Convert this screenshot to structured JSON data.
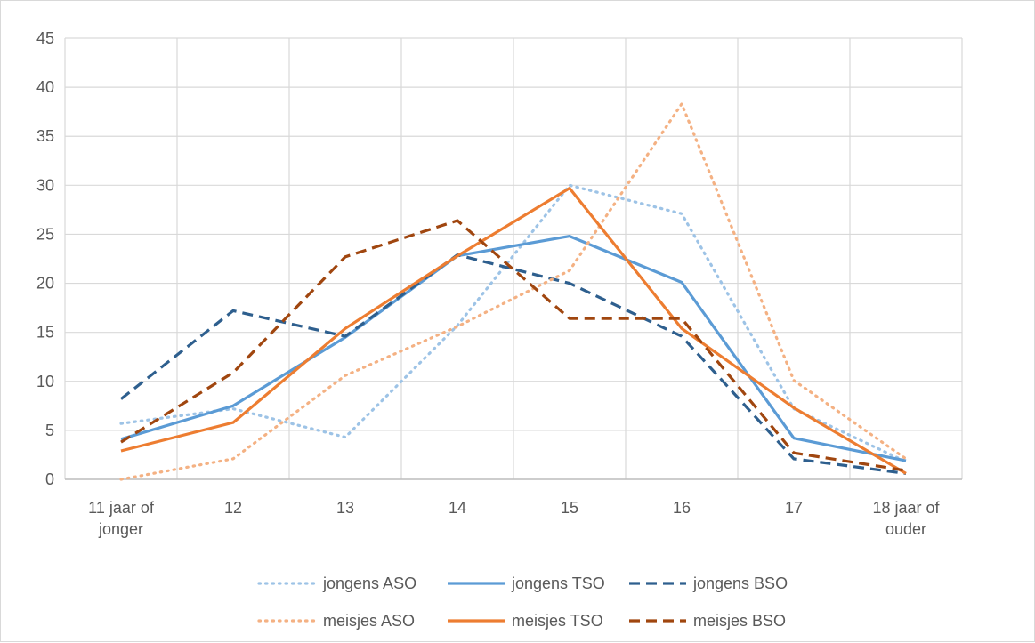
{
  "chart_data": {
    "type": "line",
    "title": "",
    "xlabel": "",
    "ylabel": "",
    "ylim": [
      0,
      45
    ],
    "y_ticks": [
      0,
      5,
      10,
      15,
      20,
      25,
      30,
      35,
      40,
      45
    ],
    "grid": true,
    "legend_position": "bottom",
    "categories": [
      [
        "11 jaar of",
        "jonger"
      ],
      [
        "12"
      ],
      [
        "13"
      ],
      [
        "14"
      ],
      [
        "15"
      ],
      [
        "16"
      ],
      [
        "17"
      ],
      [
        "18 jaar of",
        "ouder"
      ]
    ],
    "series": [
      {
        "name": "jongens ASO",
        "color": "#9dc3e6",
        "dash": "dotted",
        "values": [
          5.7,
          7.2,
          4.3,
          15.7,
          30.0,
          27.1,
          7.2,
          1.8
        ]
      },
      {
        "name": "jongens TSO",
        "color": "#5b9bd5",
        "dash": "solid",
        "values": [
          4.1,
          7.5,
          14.5,
          22.8,
          24.8,
          20.1,
          4.2,
          1.9
        ]
      },
      {
        "name": "jongens BSO",
        "color": "#2e5f8e",
        "dash": "dashed",
        "values": [
          8.2,
          17.2,
          14.6,
          22.9,
          20.0,
          14.6,
          2.1,
          0.6
        ]
      },
      {
        "name": "meisjes ASO",
        "color": "#f4b183",
        "dash": "dotted",
        "values": [
          0.0,
          2.1,
          10.6,
          15.6,
          21.3,
          38.3,
          10.1,
          2.1
        ]
      },
      {
        "name": "meisjes TSO",
        "color": "#ed7d31",
        "dash": "solid",
        "values": [
          2.9,
          5.8,
          15.4,
          22.8,
          29.7,
          15.4,
          7.3,
          0.6
        ]
      },
      {
        "name": "meisjes BSO",
        "color": "#a0460f",
        "dash": "dashed",
        "values": [
          3.8,
          10.9,
          22.7,
          26.4,
          16.4,
          16.4,
          2.7,
          0.9
        ]
      }
    ]
  }
}
